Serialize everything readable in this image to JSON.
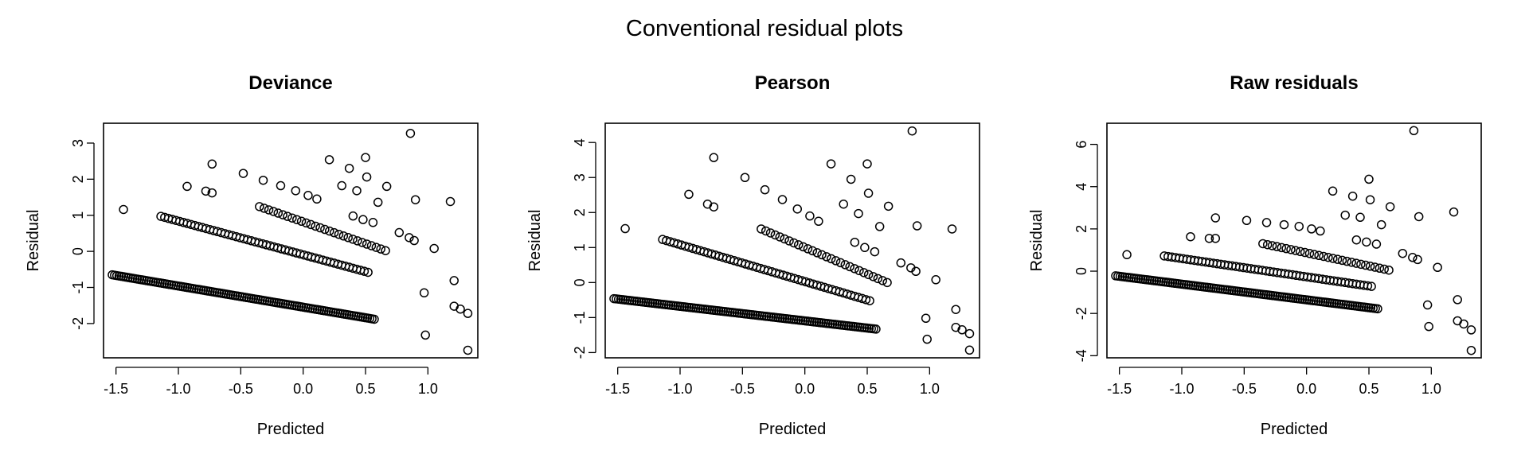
{
  "figure": {
    "title": "Conventional residual plots"
  },
  "chart_data": [
    {
      "type": "scatter",
      "title": "Deviance",
      "xlabel": "Predicted",
      "ylabel": "Residual",
      "xlim": [
        -1.6,
        1.4
      ],
      "ylim": [
        -2.95,
        3.55
      ],
      "xticks": [
        -1.5,
        -1.0,
        -0.5,
        0.0,
        0.5,
        1.0
      ],
      "xtick_labels": [
        "-1.5",
        "-1.0",
        "-0.5",
        "0.0",
        "0.5",
        "1.0"
      ],
      "yticks": [
        -2,
        -1,
        0,
        1,
        2,
        3
      ],
      "ytick_labels": [
        "-2",
        "-1",
        "0",
        "1",
        "2",
        "3"
      ],
      "bands": [
        {
          "x_start": -1.53,
          "x_end": 0.57,
          "y_start": -0.65,
          "y_end": -1.88,
          "n": 116
        },
        {
          "x_start": -1.14,
          "x_end": 0.52,
          "y_start": 0.97,
          "y_end": -0.58,
          "n": 56
        },
        {
          "x_start": -0.35,
          "x_end": 0.66,
          "y_start": 1.24,
          "y_end": 0.02,
          "n": 28
        }
      ],
      "points": [
        [
          -1.44,
          1.16
        ],
        [
          -0.93,
          1.8
        ],
        [
          -0.78,
          1.67
        ],
        [
          -0.73,
          2.42
        ],
        [
          -0.73,
          1.62
        ],
        [
          -0.48,
          2.16
        ],
        [
          -0.32,
          1.97
        ],
        [
          -0.18,
          1.82
        ],
        [
          -0.06,
          1.68
        ],
        [
          0.04,
          1.55
        ],
        [
          0.11,
          1.45
        ],
        [
          0.21,
          2.54
        ],
        [
          0.31,
          1.82
        ],
        [
          0.37,
          2.3
        ],
        [
          0.43,
          1.68
        ],
        [
          0.5,
          2.6
        ],
        [
          0.51,
          2.06
        ],
        [
          0.6,
          1.36
        ],
        [
          0.67,
          1.8
        ],
        [
          0.4,
          0.98
        ],
        [
          0.48,
          0.88
        ],
        [
          0.56,
          0.8
        ],
        [
          0.77,
          0.52
        ],
        [
          0.85,
          0.38
        ],
        [
          0.89,
          0.3
        ],
        [
          0.86,
          3.27
        ],
        [
          0.9,
          1.43
        ],
        [
          1.05,
          0.08
        ],
        [
          1.18,
          1.38
        ],
        [
          0.97,
          -1.15
        ],
        [
          0.98,
          -2.32
        ],
        [
          1.21,
          -0.81
        ],
        [
          1.21,
          -1.52
        ],
        [
          1.26,
          -1.6
        ],
        [
          1.32,
          -1.72
        ],
        [
          1.32,
          -2.74
        ]
      ]
    },
    {
      "type": "scatter",
      "title": "Pearson",
      "xlabel": "Predicted",
      "ylabel": "Residual",
      "xlim": [
        -1.6,
        1.4
      ],
      "ylim": [
        -2.15,
        4.55
      ],
      "xticks": [
        -1.5,
        -1.0,
        -0.5,
        0.0,
        0.5,
        1.0
      ],
      "xtick_labels": [
        "-1.5",
        "-1.0",
        "-0.5",
        "0.0",
        "0.5",
        "1.0"
      ],
      "yticks": [
        -2,
        -1,
        0,
        1,
        2,
        3,
        4
      ],
      "ytick_labels": [
        "-2",
        "-1",
        "0",
        "1",
        "2",
        "3",
        "4"
      ],
      "bands": [
        {
          "x_start": -1.53,
          "x_end": 0.57,
          "y_start": -0.46,
          "y_end": -1.33,
          "n": 116
        },
        {
          "x_start": -1.14,
          "x_end": 0.52,
          "y_start": 1.23,
          "y_end": -0.52,
          "n": 56
        },
        {
          "x_start": -0.35,
          "x_end": 0.66,
          "y_start": 1.53,
          "y_end": 0.0,
          "n": 28
        }
      ],
      "points": [
        [
          -1.44,
          1.54
        ],
        [
          -0.93,
          2.52
        ],
        [
          -0.78,
          2.24
        ],
        [
          -0.73,
          3.57
        ],
        [
          -0.73,
          2.16
        ],
        [
          -0.48,
          3.0
        ],
        [
          -0.32,
          2.65
        ],
        [
          -0.18,
          2.37
        ],
        [
          -0.06,
          2.1
        ],
        [
          0.04,
          1.9
        ],
        [
          0.11,
          1.75
        ],
        [
          0.21,
          3.39
        ],
        [
          0.31,
          2.24
        ],
        [
          0.37,
          2.95
        ],
        [
          0.43,
          1.97
        ],
        [
          0.5,
          3.39
        ],
        [
          0.51,
          2.55
        ],
        [
          0.6,
          1.6
        ],
        [
          0.67,
          2.18
        ],
        [
          0.4,
          1.15
        ],
        [
          0.48,
          1.0
        ],
        [
          0.56,
          0.88
        ],
        [
          0.77,
          0.56
        ],
        [
          0.85,
          0.42
        ],
        [
          0.89,
          0.32
        ],
        [
          0.86,
          4.33
        ],
        [
          0.9,
          1.62
        ],
        [
          1.05,
          0.08
        ],
        [
          1.18,
          1.53
        ],
        [
          0.97,
          -1.02
        ],
        [
          0.98,
          -1.62
        ],
        [
          1.21,
          -0.77
        ],
        [
          1.21,
          -1.28
        ],
        [
          1.26,
          -1.35
        ],
        [
          1.32,
          -1.46
        ],
        [
          1.32,
          -1.93
        ]
      ]
    },
    {
      "type": "scatter",
      "title": "Raw residuals",
      "xlabel": "Predicted",
      "ylabel": "Residual",
      "xlim": [
        -1.6,
        1.4
      ],
      "ylim": [
        -4.1,
        7.0
      ],
      "xticks": [
        -1.5,
        -1.0,
        -0.5,
        0.0,
        0.5,
        1.0
      ],
      "xtick_labels": [
        "-1.5",
        "-1.0",
        "-0.5",
        "0.0",
        "0.5",
        "1.0"
      ],
      "yticks": [
        -4,
        -2,
        0,
        2,
        4,
        6
      ],
      "ytick_labels": [
        "-4",
        "-2",
        "0",
        "2",
        "4",
        "6"
      ],
      "bands": [
        {
          "x_start": -1.53,
          "x_end": 0.57,
          "y_start": -0.22,
          "y_end": -1.78,
          "n": 116
        },
        {
          "x_start": -1.14,
          "x_end": 0.52,
          "y_start": 0.72,
          "y_end": -0.72,
          "n": 56
        },
        {
          "x_start": -0.35,
          "x_end": 0.66,
          "y_start": 1.3,
          "y_end": 0.05,
          "n": 28
        }
      ],
      "points": [
        [
          -1.44,
          0.78
        ],
        [
          -0.93,
          1.63
        ],
        [
          -0.78,
          1.55
        ],
        [
          -0.73,
          2.52
        ],
        [
          -0.73,
          1.55
        ],
        [
          -0.48,
          2.4
        ],
        [
          -0.32,
          2.3
        ],
        [
          -0.18,
          2.2
        ],
        [
          -0.06,
          2.12
        ],
        [
          0.04,
          2.0
        ],
        [
          0.11,
          1.9
        ],
        [
          0.21,
          3.79
        ],
        [
          0.31,
          2.65
        ],
        [
          0.37,
          3.55
        ],
        [
          0.43,
          2.55
        ],
        [
          0.5,
          4.35
        ],
        [
          0.51,
          3.38
        ],
        [
          0.6,
          2.2
        ],
        [
          0.67,
          3.05
        ],
        [
          0.4,
          1.48
        ],
        [
          0.48,
          1.38
        ],
        [
          0.56,
          1.28
        ],
        [
          0.77,
          0.84
        ],
        [
          0.85,
          0.65
        ],
        [
          0.89,
          0.55
        ],
        [
          0.86,
          6.65
        ],
        [
          0.9,
          2.58
        ],
        [
          1.05,
          0.18
        ],
        [
          1.18,
          2.8
        ],
        [
          0.97,
          -1.6
        ],
        [
          0.98,
          -2.62
        ],
        [
          1.21,
          -1.35
        ],
        [
          1.21,
          -2.35
        ],
        [
          1.26,
          -2.5
        ],
        [
          1.32,
          -2.78
        ],
        [
          1.32,
          -3.75
        ]
      ]
    }
  ]
}
